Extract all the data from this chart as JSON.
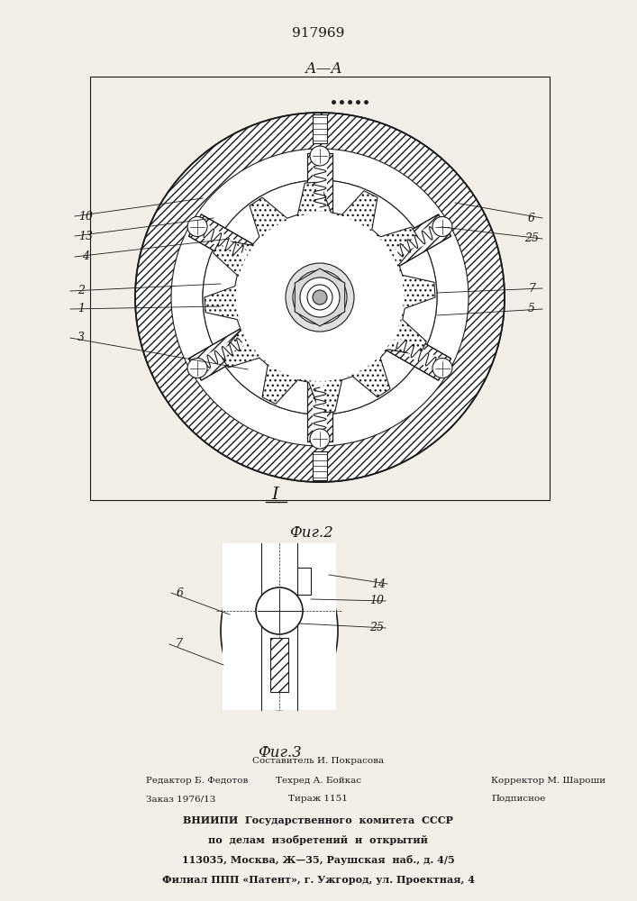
{
  "patent_number": "917969",
  "bg_color": "#f2efe9",
  "line_color": "#1a1a1a",
  "fig2_label": "А—А",
  "fig2_caption": "Фиг.2",
  "fig3_caption": "Фиг.3",
  "fig3_label": "I",
  "footer_col1_line1": "Редактор Б. Федотов",
  "footer_col1_line2": "Заказ 1976/13",
  "footer_col2_line0": "Составитель И. Покрасова",
  "footer_col2_line1": "Техред А. Бойкас",
  "footer_col2_line2": "Тираж 1151",
  "footer_col3_line1": "Корректор М. Шароши",
  "footer_col3_line2": "Подписное",
  "footer_bold1": "ВНИИПИ  Государственного  комитета  СССР",
  "footer_bold2": "по  делам  изобретений  и  открытий",
  "footer_bold3": "113035, Москва, Ж—35, Раушская  наб., д. 4/5",
  "footer_bold4": "Филиал ППП «Патент», г. Ужгород, ул. Проектная, 4"
}
